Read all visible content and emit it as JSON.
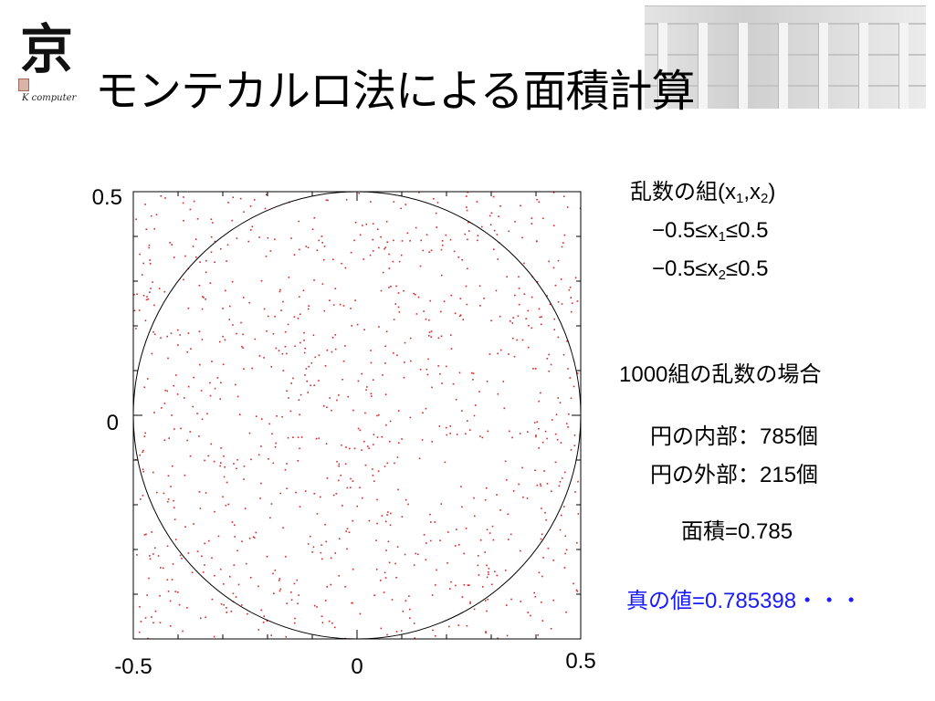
{
  "header": {
    "title": "モンテカルロ法による面積計算",
    "logo": {
      "glyph": "京",
      "text": "K computer",
      "icon": "k-computer-logo-icon"
    },
    "photo": {
      "icon": "building-photo-icon"
    }
  },
  "side_text": {
    "pair": {
      "prefix": "乱数の組(x",
      "sub1": "1",
      "sep": ",x",
      "sub2": "2",
      "suffix": ")"
    },
    "range1": {
      "prefix": "−0.5≤x",
      "sub": "1",
      "suffix": "≤0.5"
    },
    "range2": {
      "prefix": "−0.5≤x",
      "sub": "2",
      "suffix": "≤0.5"
    },
    "count_label": "1000組の乱数の場合",
    "inside": "円の内部：785個",
    "outside": "円の外部：215個",
    "area": "面積=0.785",
    "true_value": "真の値=0.785398・・・"
  },
  "colors": {
    "points": "#d62828",
    "true_value": "#1a1aff",
    "circle": "#000000"
  },
  "chart_data": {
    "type": "scatter",
    "title": "",
    "xlabel": "",
    "ylabel": "",
    "xlim": [
      -0.5,
      0.5
    ],
    "ylim": [
      -0.5,
      0.5
    ],
    "x_ticks": [
      "-0.5",
      "0",
      "0.5"
    ],
    "y_ticks": [
      "0.5",
      "0"
    ],
    "grid": false,
    "num_points": 1000,
    "inside_count": 785,
    "outside_count": 215,
    "circle": {
      "center": [
        0,
        0
      ],
      "radius": 0.5
    },
    "series": [
      {
        "name": "",
        "distribution": "uniform random",
        "color": "#d62828"
      }
    ]
  }
}
